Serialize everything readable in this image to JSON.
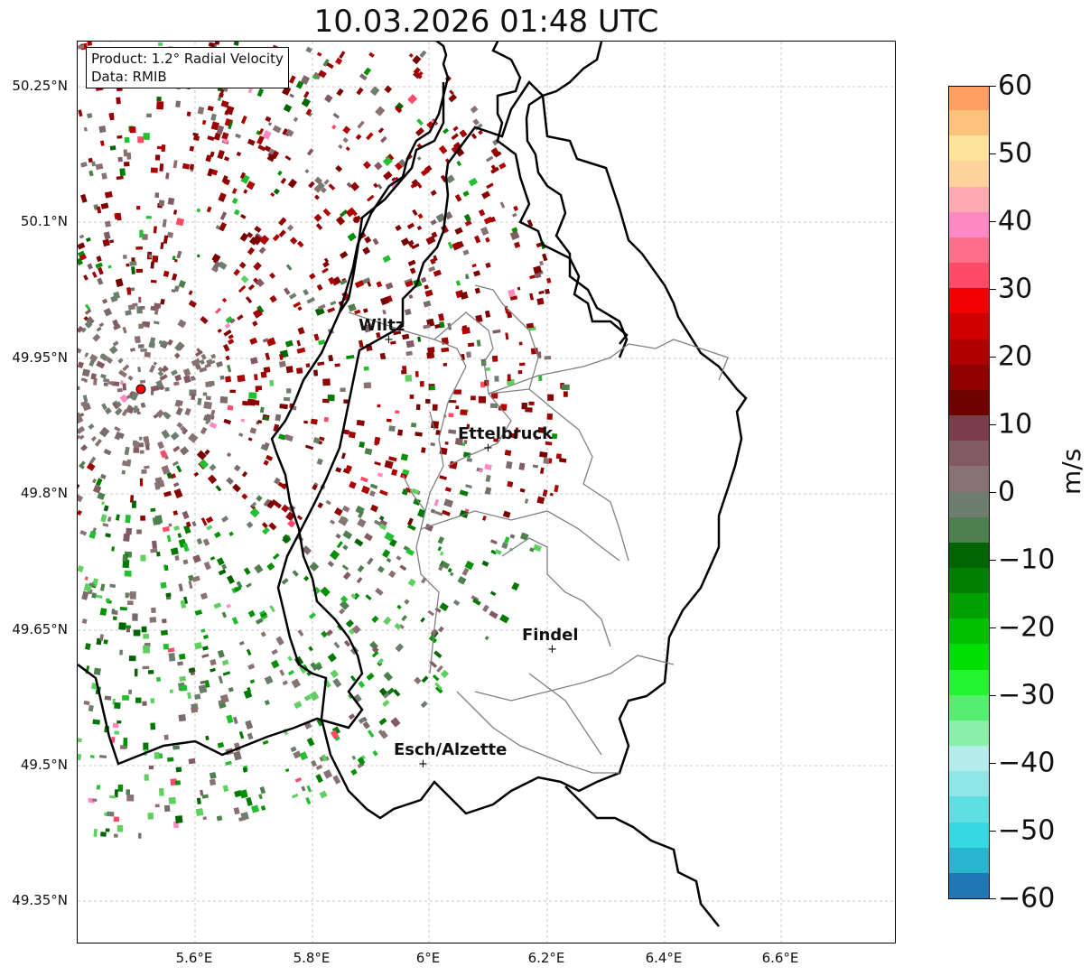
{
  "title": "10.03.2026 01:48 UTC",
  "info": {
    "product": "Product: 1.2° Radial Velocity",
    "source": "Data: RMIB"
  },
  "y_ticks": [
    "50.25°N",
    "50.1°N",
    "49.95°N",
    "49.8°N",
    "49.65°N",
    "49.5°N",
    "49.35°N"
  ],
  "x_ticks": [
    "5.6°E",
    "5.8°E",
    "6°E",
    "6.2°E",
    "6.4°E",
    "6.6°E"
  ],
  "cities": [
    {
      "name": "Wiltz"
    },
    {
      "name": "Ettelbruck"
    },
    {
      "name": "Findel"
    },
    {
      "name": "Esch/Alzette"
    }
  ],
  "colorbar": {
    "label": "m/s",
    "ticks": [
      "60",
      "50",
      "40",
      "30",
      "20",
      "10",
      "0",
      "−10",
      "−20",
      "−30",
      "−40",
      "−50",
      "−60"
    ],
    "range": [
      -60,
      60
    ],
    "colors": [
      "#1f78b4",
      "#2ab5cf",
      "#34d8df",
      "#5fe0e0",
      "#8ee6e6",
      "#b4ecec",
      "#88f0a8",
      "#56ee70",
      "#22f530",
      "#00e000",
      "#00c000",
      "#00a000",
      "#008000",
      "#006400",
      "#4e7f4e",
      "#6e7e6e",
      "#887373",
      "#845a62",
      "#7a3e4a",
      "#6e0000",
      "#900000",
      "#b00000",
      "#d00000",
      "#f00000",
      "#ff4a6a",
      "#ff6e8a",
      "#ff89c3",
      "#ffaab0",
      "#ffd39b",
      "#ffe39a",
      "#ffc27a",
      "#ffa060"
    ]
  },
  "map": {
    "radar_site_color": "#ff0000",
    "border_color": "#000000",
    "canton_color": "#808080",
    "grid": true
  }
}
